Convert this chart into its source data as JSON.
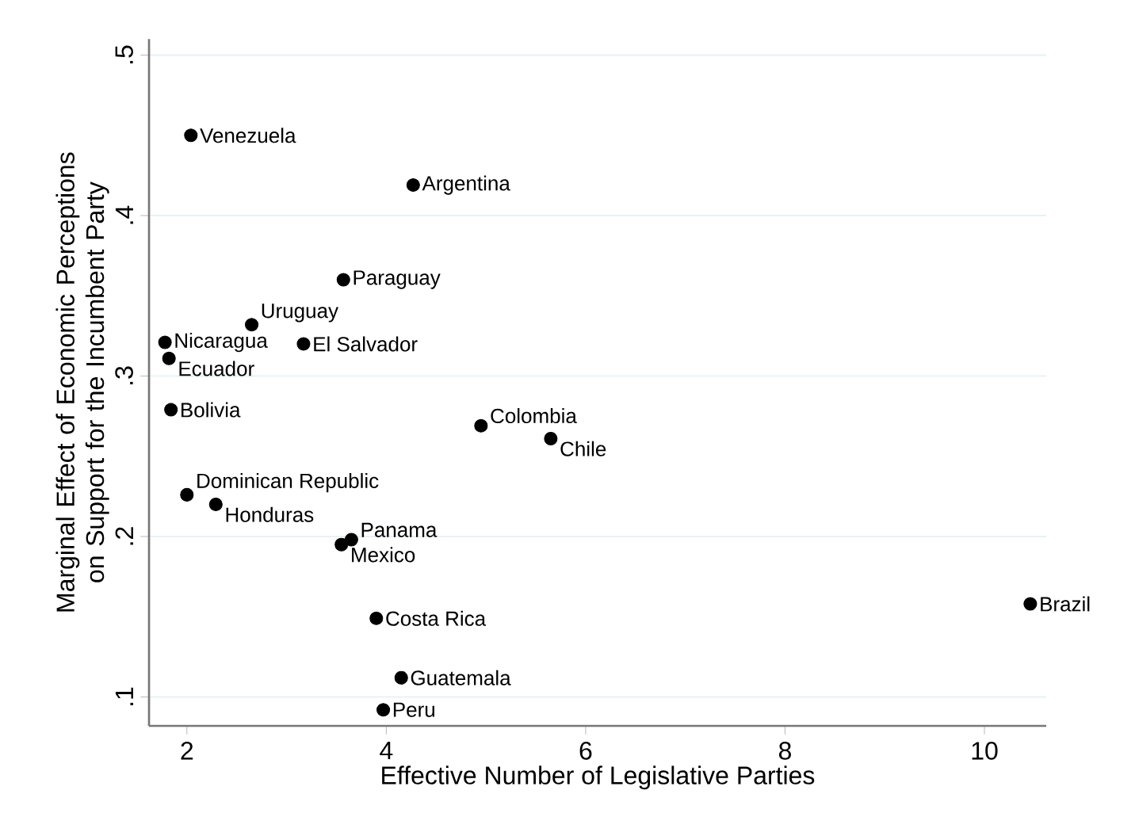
{
  "chart_data": {
    "type": "scatter",
    "xlabel": "Effective Number of Legislative Parties",
    "ylabel": "Marginal Effect of Economic Perceptions on Support for the Incumbent Party",
    "x": [
      2.04,
      4.27,
      3.57,
      2.65,
      1.78,
      3.17,
      1.82,
      1.84,
      4.95,
      5.65,
      2.0,
      2.29,
      3.65,
      3.55,
      3.9,
      4.15,
      3.97,
      10.46
    ],
    "series": [
      {
        "color": "#000000",
        "values": [
          0.45,
          0.419,
          0.36,
          0.332,
          0.321,
          0.32,
          0.311,
          0.279,
          0.269,
          0.261,
          0.226,
          0.22,
          0.198,
          0.195,
          0.149,
          0.112,
          0.092,
          0.158
        ]
      }
    ],
    "annotations": [
      {
        "text": "Venezuela",
        "x": 2.04,
        "y": 0.45
      },
      {
        "text": "Argentina",
        "x": 4.27,
        "y": 0.419
      },
      {
        "text": "Paraguay",
        "x": 3.57,
        "y": 0.36
      },
      {
        "text": "Uruguay",
        "x": 2.65,
        "y": 0.332
      },
      {
        "text": "Nicaragua",
        "x": 1.78,
        "y": 0.321
      },
      {
        "text": "El Salvador",
        "x": 3.17,
        "y": 0.32
      },
      {
        "text": "Ecuador",
        "x": 1.82,
        "y": 0.311
      },
      {
        "text": "Bolivia",
        "x": 1.84,
        "y": 0.279
      },
      {
        "text": "Colombia",
        "x": 4.95,
        "y": 0.269
      },
      {
        "text": "Chile",
        "x": 5.65,
        "y": 0.261
      },
      {
        "text": "Dominican Republic",
        "x": 2.0,
        "y": 0.226
      },
      {
        "text": "Honduras",
        "x": 2.29,
        "y": 0.22
      },
      {
        "text": "Panama",
        "x": 3.65,
        "y": 0.198
      },
      {
        "text": "Mexico",
        "x": 3.55,
        "y": 0.195
      },
      {
        "text": "Costa Rica",
        "x": 3.9,
        "y": 0.149
      },
      {
        "text": "Guatemala",
        "x": 4.15,
        "y": 0.112
      },
      {
        "text": "Peru",
        "x": 3.97,
        "y": 0.092
      },
      {
        "text": "Brazil",
        "x": 10.46,
        "y": 0.158
      }
    ],
    "xlim": [
      1.62,
      10.62
    ],
    "ylim": [
      0.082,
      0.51
    ],
    "xticks": [
      2,
      4,
      6,
      8,
      10
    ],
    "yticks": [
      {
        "value": 0.1,
        "label": ".1"
      },
      {
        "value": 0.2,
        "label": ".2"
      },
      {
        "value": 0.3,
        "label": ".3"
      },
      {
        "value": 0.4,
        "label": ".4"
      },
      {
        "value": 0.5,
        "label": ".5"
      }
    ],
    "grid": "y"
  }
}
